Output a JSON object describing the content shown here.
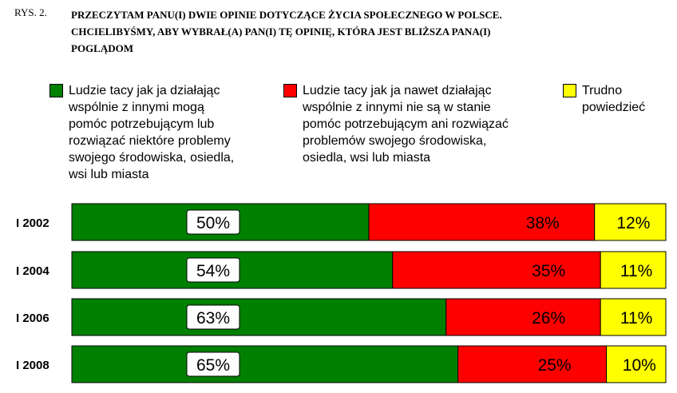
{
  "figure_label": "RYS. 2.",
  "title_lines": [
    "PRZECZYTAM PANU(I) DWIE OPINIE DOTYCZĄCE ŻYCIA SPOŁECZNEGO W POLSCE.",
    "CHCIELIBYŚMY, ABY WYBRAŁ(A) PAN(I) TĘ OPINIĘ, KTÓRA JEST BLIŻSZA PANA(I)",
    "POGLĄDOM"
  ],
  "legend": [
    {
      "color": "#008000",
      "lines": [
        "Ludzie tacy jak ja działając",
        "wspólnie z innymi mogą",
        "pomóc potrzebującym lub",
        "rozwiązać niektóre problemy",
        "swojego środowiska, osiedla,",
        "wsi lub miasta"
      ]
    },
    {
      "color": "#ff0000",
      "lines": [
        "Ludzie tacy jak ja nawet działając",
        "wspólnie z innymi nie są w stanie",
        "pomóc potrzebującym ani rozwiązać",
        "problemów swojego środowiska,",
        "osiedla, wsi lub miasta"
      ]
    },
    {
      "color": "#ffff00",
      "lines": [
        "Trudno",
        "powiedzieć"
      ]
    }
  ],
  "chart_data": {
    "type": "bar",
    "orientation": "horizontal",
    "stacked": true,
    "percent_stacked": true,
    "categories": [
      "I 2002",
      "I 2004",
      "I 2006",
      "I 2008"
    ],
    "series": [
      {
        "color": "#008000",
        "values": [
          50,
          54,
          63,
          65
        ],
        "labels": [
          "50%",
          "54%",
          "63%",
          "65%"
        ]
      },
      {
        "color": "#ff0000",
        "values": [
          38,
          35,
          26,
          25
        ],
        "labels": [
          "38%",
          "35%",
          "26%",
          "25%"
        ]
      },
      {
        "color": "#ffff00",
        "values": [
          12,
          11,
          11,
          10
        ],
        "labels": [
          "12%",
          "11%",
          "11%",
          "10%"
        ]
      }
    ],
    "xlim": [
      0,
      100
    ],
    "grid": false,
    "legend_position": "top"
  }
}
